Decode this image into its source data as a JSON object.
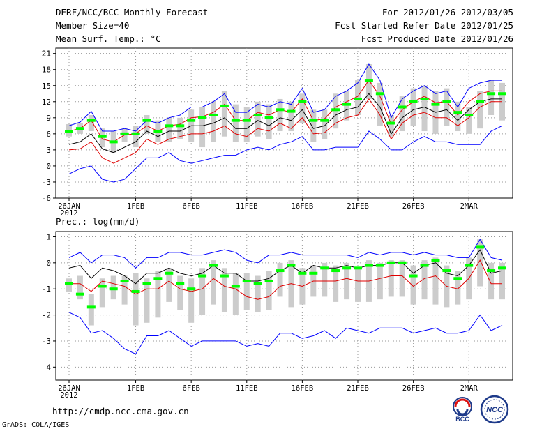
{
  "header": {
    "title": "DERF/NCC/BCC Monthly Forecast",
    "member_size": "Member Size=40",
    "variable_top": "Mean Surf. Temp.: °C",
    "period": "For 2012/01/26-2012/03/05",
    "started": "Fcst Started Refer Date 2012/01/25",
    "produced": "Fcst Produced Date 2012/01/26"
  },
  "footer": {
    "url": "http://cmdp.ncc.cma.gov.cn",
    "grads": "GrADS: COLA/IGES",
    "logo_bcc": "BCC",
    "logo_ncc": "NCC"
  },
  "colors": {
    "max_min": "#0000ff",
    "quartile": "#e00000",
    "median": "#000000",
    "mean": "#00ff00",
    "box": "#cccccc",
    "grid": "#999999"
  },
  "chart_data": [
    {
      "type": "line",
      "title": "Mean Surf. Temp.: °C",
      "x": [
        "26JAN",
        "27JAN",
        "28JAN",
        "29JAN",
        "30JAN",
        "31JAN",
        "1FEB",
        "2FEB",
        "3FEB",
        "4FEB",
        "5FEB",
        "6FEB",
        "7FEB",
        "8FEB",
        "9FEB",
        "10FEB",
        "11FEB",
        "12FEB",
        "13FEB",
        "14FEB",
        "15FEB",
        "16FEB",
        "17FEB",
        "18FEB",
        "19FEB",
        "20FEB",
        "21FEB",
        "22FEB",
        "23FEB",
        "24FEB",
        "25FEB",
        "26FEB",
        "27FEB",
        "28FEB",
        "29FEB",
        "1MAR",
        "2MAR",
        "3MAR",
        "4MAR",
        "5MAR"
      ],
      "x_ticks": [
        "26JAN\n2012",
        "1FEB",
        "6FEB",
        "11FEB",
        "16FEB",
        "21FEB",
        "26FEB",
        "2MAR"
      ],
      "ylim": [
        -6,
        22
      ],
      "yticks": [
        -6,
        -3,
        0,
        3,
        6,
        9,
        12,
        15,
        18,
        21
      ],
      "series": [
        {
          "name": "max",
          "values": [
            7.5,
            8.2,
            10.2,
            6.5,
            6.5,
            7.0,
            6.5,
            8.5,
            8.0,
            9.0,
            9.5,
            11.0,
            11.0,
            12.0,
            13.5,
            10.0,
            10.0,
            11.5,
            11.0,
            12.0,
            11.5,
            14.5,
            10.0,
            10.5,
            13.0,
            14.0,
            15.5,
            19.0,
            16.0,
            9.0,
            12.5,
            14.0,
            15.0,
            13.5,
            14.0,
            11.0,
            14.5,
            15.5,
            16.0,
            16.0
          ]
        },
        {
          "name": "upper_quartile",
          "values": [
            6.5,
            7.0,
            8.5,
            5.0,
            4.5,
            5.8,
            6.0,
            7.5,
            6.5,
            7.5,
            7.8,
            9.0,
            9.2,
            10.0,
            11.5,
            8.5,
            8.5,
            10.0,
            9.5,
            10.5,
            10.0,
            12.5,
            8.5,
            8.8,
            11.0,
            12.0,
            13.0,
            16.0,
            13.0,
            7.8,
            10.5,
            12.0,
            13.0,
            11.8,
            12.0,
            9.5,
            12.0,
            13.5,
            14.0,
            14.0
          ]
        },
        {
          "name": "median",
          "values": [
            4.0,
            4.5,
            6.0,
            3.2,
            2.5,
            3.5,
            4.5,
            6.5,
            5.5,
            6.5,
            6.5,
            7.5,
            7.5,
            8.0,
            9.0,
            7.0,
            7.0,
            8.5,
            7.5,
            9.0,
            8.5,
            10.5,
            7.0,
            7.5,
            9.5,
            10.5,
            11.0,
            13.5,
            11.0,
            6.0,
            9.0,
            10.5,
            11.0,
            10.0,
            10.5,
            8.5,
            10.5,
            12.0,
            12.5,
            12.5
          ]
        },
        {
          "name": "lower_quartile",
          "values": [
            3.0,
            3.2,
            4.5,
            1.5,
            0.5,
            1.5,
            2.5,
            5.0,
            4.0,
            5.0,
            5.5,
            6.0,
            6.0,
            6.5,
            7.5,
            6.0,
            5.5,
            7.0,
            6.5,
            8.0,
            7.0,
            9.0,
            6.0,
            6.2,
            8.0,
            9.0,
            9.5,
            12.5,
            9.5,
            5.0,
            8.0,
            9.5,
            10.0,
            9.0,
            9.0,
            7.5,
            9.0,
            11.0,
            12.0,
            12.0
          ]
        },
        {
          "name": "min",
          "values": [
            -1.5,
            -0.5,
            0.0,
            -2.5,
            -3.0,
            -2.5,
            -0.5,
            1.5,
            1.5,
            2.5,
            1.0,
            0.5,
            1.0,
            1.5,
            2.0,
            2.0,
            3.0,
            3.5,
            3.0,
            4.0,
            4.5,
            5.5,
            3.0,
            3.0,
            3.5,
            3.5,
            3.5,
            6.5,
            5.0,
            3.0,
            3.0,
            4.5,
            5.5,
            4.5,
            4.5,
            4.0,
            4.0,
            4.0,
            6.5,
            7.5
          ]
        },
        {
          "name": "mean",
          "values": [
            6.5,
            7.0,
            8.5,
            5.5,
            4.5,
            6.0,
            6.0,
            8.5,
            6.5,
            7.5,
            7.5,
            8.5,
            9.0,
            9.5,
            11.2,
            8.5,
            8.5,
            9.5,
            9.0,
            10.5,
            10.2,
            12.0,
            8.5,
            8.5,
            10.5,
            11.5,
            12.5,
            16.0,
            13.5,
            8.0,
            11.0,
            12.0,
            12.5,
            11.5,
            12.0,
            10.0,
            9.5,
            12.0,
            13.5,
            13.5
          ]
        },
        {
          "name": "box_top",
          "values": [
            7.8,
            8.0,
            9.5,
            7.0,
            6.5,
            7.0,
            7.5,
            9.5,
            8.5,
            9.0,
            9.0,
            10.5,
            11.0,
            12.0,
            14.0,
            11.5,
            11.0,
            12.0,
            11.5,
            12.5,
            12.0,
            13.5,
            10.5,
            10.5,
            13.5,
            14.0,
            16.0,
            19.0,
            15.5,
            9.5,
            13.0,
            14.5,
            15.0,
            14.0,
            14.5,
            12.0,
            11.0,
            14.0,
            16.0,
            15.5
          ]
        },
        {
          "name": "box_bottom",
          "values": [
            5.5,
            6.0,
            6.5,
            3.5,
            2.5,
            4.5,
            3.5,
            6.0,
            4.5,
            4.5,
            5.0,
            4.5,
            3.5,
            4.5,
            5.5,
            4.5,
            4.5,
            5.5,
            5.0,
            6.5,
            6.5,
            8.0,
            4.5,
            5.0,
            7.0,
            8.5,
            9.5,
            12.5,
            7.5,
            5.5,
            6.5,
            7.5,
            6.5,
            6.0,
            7.5,
            6.5,
            6.0,
            7.0,
            9.5,
            8.5
          ]
        }
      ]
    },
    {
      "type": "line",
      "title": "Prec.: log(mm/d)",
      "x": [
        "26JAN",
        "27JAN",
        "28JAN",
        "29JAN",
        "30JAN",
        "31JAN",
        "1FEB",
        "2FEB",
        "3FEB",
        "4FEB",
        "5FEB",
        "6FEB",
        "7FEB",
        "8FEB",
        "9FEB",
        "10FEB",
        "11FEB",
        "12FEB",
        "13FEB",
        "14FEB",
        "15FEB",
        "16FEB",
        "17FEB",
        "18FEB",
        "19FEB",
        "20FEB",
        "21FEB",
        "22FEB",
        "23FEB",
        "24FEB",
        "25FEB",
        "26FEB",
        "27FEB",
        "28FEB",
        "29FEB",
        "1MAR",
        "2MAR",
        "3MAR",
        "4MAR",
        "5MAR"
      ],
      "x_ticks": [
        "26JAN\n2012",
        "1FEB",
        "6FEB",
        "11FEB",
        "16FEB",
        "21FEB",
        "26FEB",
        "2MAR"
      ],
      "ylim": [
        -4.5,
        1.2
      ],
      "yticks": [
        -4,
        -3,
        -2,
        -1,
        0,
        1
      ],
      "series": [
        {
          "name": "max",
          "values": [
            0.2,
            0.4,
            0.0,
            0.3,
            0.3,
            0.2,
            -0.2,
            0.2,
            0.2,
            0.4,
            0.4,
            0.3,
            0.3,
            0.4,
            0.5,
            0.4,
            0.1,
            0.0,
            0.3,
            0.3,
            0.4,
            0.3,
            0.3,
            0.3,
            0.3,
            0.3,
            0.2,
            0.4,
            0.3,
            0.4,
            0.4,
            0.3,
            0.4,
            0.3,
            0.3,
            0.2,
            0.2,
            0.9,
            0.2,
            0.1
          ]
        },
        {
          "name": "median",
          "values": [
            -0.2,
            -0.1,
            -0.6,
            -0.2,
            -0.3,
            -0.5,
            -0.8,
            -0.4,
            -0.4,
            -0.2,
            -0.4,
            -0.5,
            -0.4,
            -0.1,
            -0.4,
            -0.4,
            -0.7,
            -0.7,
            -0.6,
            -0.3,
            -0.1,
            -0.4,
            -0.1,
            -0.2,
            -0.2,
            -0.1,
            -0.2,
            -0.1,
            -0.1,
            0.0,
            0.0,
            -0.4,
            -0.1,
            0.0,
            -0.4,
            -0.5,
            -0.1,
            0.5,
            -0.4,
            -0.3
          ]
        },
        {
          "name": "lower_quartile",
          "values": [
            -0.8,
            -0.8,
            -1.1,
            -0.7,
            -0.8,
            -0.9,
            -1.2,
            -1.0,
            -1.0,
            -0.7,
            -1.0,
            -1.1,
            -1.0,
            -0.6,
            -0.9,
            -1.0,
            -1.3,
            -1.4,
            -1.3,
            -0.9,
            -0.8,
            -0.9,
            -0.7,
            -0.7,
            -0.7,
            -0.6,
            -0.7,
            -0.7,
            -0.6,
            -0.5,
            -0.5,
            -0.9,
            -0.6,
            -0.5,
            -0.9,
            -1.0,
            -0.6,
            0.1,
            -0.8,
            -0.8
          ]
        },
        {
          "name": "min",
          "values": [
            -1.9,
            -2.1,
            -2.7,
            -2.6,
            -2.9,
            -3.3,
            -3.5,
            -2.8,
            -2.8,
            -2.6,
            -2.9,
            -3.2,
            -3.0,
            -3.0,
            -3.0,
            -3.0,
            -3.2,
            -3.1,
            -3.2,
            -2.7,
            -2.7,
            -2.9,
            -2.8,
            -2.6,
            -2.9,
            -2.5,
            -2.6,
            -2.7,
            -2.5,
            -2.5,
            -2.5,
            -2.7,
            -2.6,
            -2.5,
            -2.7,
            -2.7,
            -2.6,
            -2.0,
            -2.6,
            -2.4
          ]
        },
        {
          "name": "mean",
          "values": [
            -0.8,
            -1.2,
            -1.7,
            -0.9,
            -1.0,
            -0.7,
            -1.1,
            -0.8,
            -0.6,
            -0.4,
            -0.8,
            -1.0,
            -0.5,
            -0.1,
            -0.5,
            -0.9,
            -0.7,
            -0.8,
            -0.7,
            -0.3,
            -0.1,
            -0.4,
            -0.4,
            -0.2,
            -0.3,
            -0.2,
            -0.2,
            -0.1,
            -0.1,
            0.0,
            0.0,
            -0.5,
            -0.1,
            0.1,
            -0.3,
            -0.6,
            -0.1,
            0.6,
            -0.3,
            -0.2
          ]
        },
        {
          "name": "box_top",
          "values": [
            -0.6,
            -0.5,
            -1.2,
            -0.6,
            -0.5,
            -0.5,
            -0.4,
            -0.6,
            -0.3,
            -0.2,
            -0.5,
            -0.6,
            -0.2,
            0.1,
            -0.2,
            -0.4,
            -0.4,
            -0.5,
            -0.3,
            0.0,
            0.1,
            -0.2,
            -0.1,
            0.0,
            -0.1,
            0.0,
            -0.2,
            0.1,
            0.0,
            0.1,
            0.1,
            -0.1,
            0.1,
            0.2,
            -0.1,
            -0.3,
            0.2,
            0.9,
            0.0,
            0.0
          ]
        },
        {
          "name": "box_bottom",
          "values": [
            -1.1,
            -1.4,
            -2.4,
            -1.7,
            -1.4,
            -1.6,
            -2.4,
            -2.3,
            -2.1,
            -1.5,
            -1.8,
            -2.3,
            -2.0,
            -1.6,
            -1.9,
            -2.0,
            -1.8,
            -1.9,
            -1.8,
            -1.3,
            -1.7,
            -1.6,
            -1.3,
            -1.3,
            -1.5,
            -1.4,
            -1.5,
            -1.5,
            -1.4,
            -1.3,
            -1.3,
            -1.6,
            -1.4,
            -1.6,
            -1.7,
            -1.6,
            -1.4,
            -0.9,
            -1.4,
            -1.4
          ]
        }
      ]
    }
  ]
}
